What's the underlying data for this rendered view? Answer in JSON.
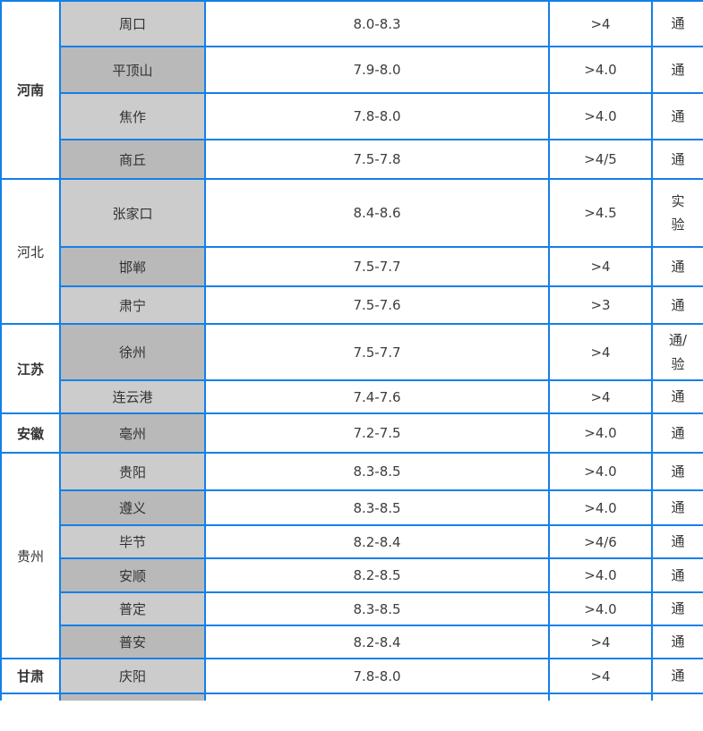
{
  "table": {
    "name": "regional-price-table",
    "colors": {
      "border_blue": "#1480e8",
      "city_cell_light": "#cccccc",
      "city_cell_dark": "#b9b9b9",
      "text": "#333333"
    },
    "column_keys": [
      "province",
      "city",
      "price_range",
      "grade",
      "status"
    ],
    "groups": [
      {
        "province": "河南",
        "bold": true,
        "rows": [
          {
            "city": "周口",
            "price": "8.0-8.3",
            "grade": ">4",
            "status": "通",
            "shade": "light",
            "h": 51
          },
          {
            "city": "平顶山",
            "price": "7.9-8.0",
            "grade": ">4.0",
            "status": "通",
            "shade": "dark",
            "h": 52
          },
          {
            "city": "焦作",
            "price": "7.8-8.0",
            "grade": ">4.0",
            "status": "通",
            "shade": "light",
            "h": 52
          },
          {
            "city": "商丘",
            "price": "7.5-7.8",
            "grade": ">4/5",
            "status": "通",
            "shade": "dark",
            "h": 44
          }
        ]
      },
      {
        "province": "河北",
        "bold": false,
        "rows": [
          {
            "city": "张家口",
            "price": "8.4-8.6",
            "grade": ">4.5",
            "status": "实\n验",
            "shade": "light",
            "h": 76
          },
          {
            "city": "邯郸",
            "price": "7.5-7.7",
            "grade": ">4",
            "status": "通",
            "shade": "dark",
            "h": 44
          },
          {
            "city": "肃宁",
            "price": "7.5-7.6",
            "grade": ">3",
            "status": "通",
            "shade": "light",
            "h": 42
          }
        ]
      },
      {
        "province": "江苏",
        "bold": true,
        "rows": [
          {
            "city": "徐州",
            "price": "7.5-7.7",
            "grade": ">4",
            "status": "通/\n验",
            "shade": "dark",
            "h": 63
          },
          {
            "city": "连云港",
            "price": "7.4-7.6",
            "grade": ">4",
            "status": "通",
            "shade": "light",
            "h": 37
          }
        ]
      },
      {
        "province": "安徽",
        "bold": true,
        "rows": [
          {
            "city": "亳州",
            "price": "7.2-7.5",
            "grade": ">4.0",
            "status": "通",
            "shade": "dark",
            "h": 44
          }
        ]
      },
      {
        "province": "贵州",
        "bold": false,
        "rows": [
          {
            "city": "贵阳",
            "price": "8.3-8.5",
            "grade": ">4.0",
            "status": "通",
            "shade": "light",
            "h": 42
          },
          {
            "city": "遵义",
            "price": "8.3-8.5",
            "grade": ">4.0",
            "status": "通",
            "shade": "dark",
            "h": 39
          },
          {
            "city": "毕节",
            "price": "8.2-8.4",
            "grade": ">4/6",
            "status": "通",
            "shade": "light",
            "h": 37
          },
          {
            "city": "安顺",
            "price": "8.2-8.5",
            "grade": ">4.0",
            "status": "通",
            "shade": "dark",
            "h": 38
          },
          {
            "city": "普定",
            "price": "8.3-8.5",
            "grade": ">4.0",
            "status": "通",
            "shade": "light",
            "h": 37
          },
          {
            "city": "普安",
            "price": "8.2-8.4",
            "grade": ">4",
            "status": "通",
            "shade": "dark",
            "h": 37
          }
        ]
      },
      {
        "province": "甘肃",
        "bold": true,
        "rows": [
          {
            "city": "庆阳",
            "price": "7.8-8.0",
            "grade": ">4",
            "status": "通",
            "shade": "light",
            "h": 39
          }
        ]
      }
    ],
    "partial_bottom_row": {
      "city_shade": "dark"
    }
  }
}
